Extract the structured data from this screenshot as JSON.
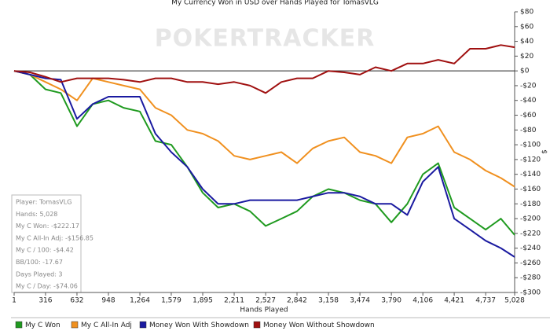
{
  "chart_data": {
    "type": "line",
    "title": "My Currency Won in USD over Hands Played for TomasVLG",
    "watermark": "POKERTRACKER",
    "x_label": "Hands Played",
    "y_label": "$",
    "x": [
      1,
      160,
      316,
      470,
      632,
      790,
      948,
      1100,
      1264,
      1420,
      1579,
      1740,
      1895,
      2050,
      2211,
      2370,
      2527,
      2685,
      2842,
      3000,
      3158,
      3316,
      3474,
      3630,
      3790,
      3950,
      4106,
      4260,
      4421,
      4580,
      4737,
      4890,
      5028
    ],
    "series": [
      {
        "name": "My C Won",
        "color": "#1f9a1f",
        "values": [
          0,
          -5,
          -25,
          -30,
          -75,
          -45,
          -40,
          -50,
          -55,
          -95,
          -100,
          -130,
          -165,
          -185,
          -180,
          -190,
          -210,
          -200,
          -190,
          -170,
          -160,
          -165,
          -175,
          -180,
          -205,
          -180,
          -140,
          -125,
          -185,
          -200,
          -215,
          -200,
          -222.17
        ]
      },
      {
        "name": "My C All-In Adj",
        "color": "#f0901f",
        "values": [
          0,
          -5,
          -15,
          -25,
          -40,
          -10,
          -15,
          -20,
          -25,
          -50,
          -60,
          -80,
          -85,
          -95,
          -115,
          -120,
          -115,
          -110,
          -125,
          -105,
          -95,
          -90,
          -110,
          -115,
          -125,
          -90,
          -85,
          -75,
          -110,
          -120,
          -135,
          -145,
          -156.85
        ]
      },
      {
        "name": "Money Won With Showdown",
        "color": "#1a1aa0",
        "values": [
          0,
          -5,
          -10,
          -12,
          -65,
          -45,
          -35,
          -35,
          -35,
          -85,
          -110,
          -130,
          -160,
          -180,
          -180,
          -175,
          -175,
          -175,
          -175,
          -170,
          -165,
          -165,
          -170,
          -180,
          -180,
          -195,
          -150,
          -130,
          -200,
          -215,
          -230,
          -240,
          -252
        ]
      },
      {
        "name": "Money Won Without Showdown",
        "color": "#a01010",
        "values": [
          0,
          -2,
          -8,
          -15,
          -10,
          -10,
          -10,
          -12,
          -15,
          -10,
          -10,
          -15,
          -15,
          -18,
          -15,
          -20,
          -30,
          -15,
          -10,
          -10,
          0,
          -2,
          -5,
          5,
          0,
          10,
          10,
          15,
          10,
          30,
          30,
          35,
          32
        ]
      }
    ],
    "xlim": [
      1,
      5028
    ],
    "xticks": [
      1,
      316,
      632,
      948,
      {
        "value": 1264,
        "label": "1,264"
      },
      {
        "value": 1579,
        "label": "1,579"
      },
      {
        "value": 1895,
        "label": "1,895"
      },
      {
        "value": 2211,
        "label": "2,211"
      },
      {
        "value": 2527,
        "label": "2,527"
      },
      {
        "value": 2842,
        "label": "2,842"
      },
      {
        "value": 3158,
        "label": "3,158"
      },
      {
        "value": 3474,
        "label": "3,474"
      },
      {
        "value": 3790,
        "label": "3,790"
      },
      {
        "value": 4106,
        "label": "4,106"
      },
      {
        "value": 4421,
        "label": "4,421"
      },
      {
        "value": 4737,
        "label": "4,737"
      },
      {
        "value": 5028,
        "label": "5,028"
      }
    ],
    "ylim": [
      -300,
      80
    ],
    "yticks": [
      {
        "value": 80,
        "label": "$80"
      },
      {
        "value": 60,
        "label": "$60"
      },
      {
        "value": 40,
        "label": "$40"
      },
      {
        "value": 20,
        "label": "$20"
      },
      {
        "value": 0,
        "label": "$0"
      },
      {
        "value": -20,
        "label": "-$20"
      },
      {
        "value": -40,
        "label": "-$40"
      },
      {
        "value": -60,
        "label": "-$60"
      },
      {
        "value": -80,
        "label": "-$80"
      },
      {
        "value": -100,
        "label": "-$100"
      },
      {
        "value": -120,
        "label": "-$120"
      },
      {
        "value": -140,
        "label": "-$140"
      },
      {
        "value": -160,
        "label": "-$160"
      },
      {
        "value": -180,
        "label": "-$180"
      },
      {
        "value": -200,
        "label": "-$200"
      },
      {
        "value": -220,
        "label": "-$220"
      },
      {
        "value": -240,
        "label": "-$240"
      },
      {
        "value": -260,
        "label": "-$260"
      },
      {
        "value": -280,
        "label": "-$280"
      },
      {
        "value": -300,
        "label": "-$300"
      }
    ],
    "grid": false,
    "stats_box": [
      "Player: TomasVLG",
      "Hands: 5,028",
      "My C Won: -$222.17",
      "My C All-In Adj: -$156.85",
      "My C / 100: -$4.42",
      "BB/100: -17.67",
      "Days Played: 3",
      "My C / Day: -$74.06"
    ]
  }
}
